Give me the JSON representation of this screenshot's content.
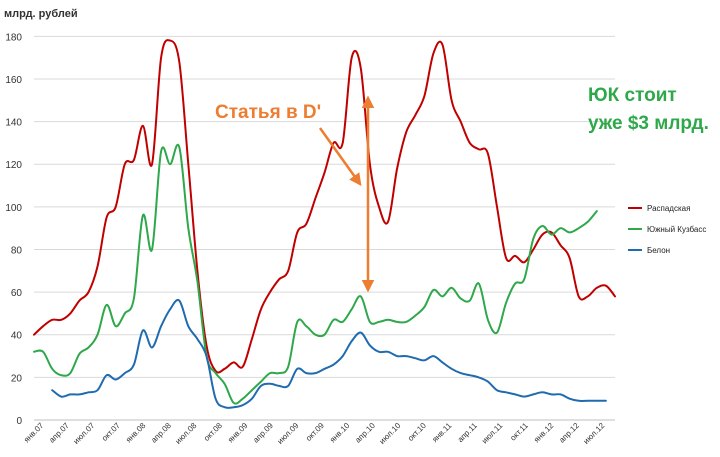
{
  "chart_data": {
    "type": "line",
    "ylabel": "млрд. рублей",
    "ylim": [
      0,
      190
    ],
    "yticks": [
      0,
      20,
      40,
      60,
      80,
      100,
      120,
      140,
      160,
      180
    ],
    "grid": "horizontal",
    "legend_position": "right",
    "x_tick_labels": [
      "янв.07",
      "апр.07",
      "июл.07",
      "окт.07",
      "янв.08",
      "апр.08",
      "июл.08",
      "окт.08",
      "янв.09",
      "апр.09",
      "июл.09",
      "окт.09",
      "янв.10",
      "апр.10",
      "июл.10",
      "окт.10",
      "янв.11",
      "апр.11",
      "июл.11",
      "окт.11",
      "янв.12",
      "апр.12",
      "июл.12"
    ],
    "series": [
      {
        "name": "Распадская",
        "color": "#C00000",
        "points": [
          [
            0,
            40
          ],
          [
            1,
            44
          ],
          [
            2,
            47
          ],
          [
            3,
            47
          ],
          [
            4,
            50
          ],
          [
            5,
            56
          ],
          [
            6,
            60
          ],
          [
            7,
            72
          ],
          [
            8,
            95
          ],
          [
            9,
            100
          ],
          [
            10,
            120
          ],
          [
            11,
            122
          ],
          [
            12,
            138
          ],
          [
            13,
            120
          ],
          [
            14,
            170
          ],
          [
            15,
            178
          ],
          [
            16,
            168
          ],
          [
            17,
            120
          ],
          [
            18,
            70
          ],
          [
            19,
            35
          ],
          [
            20,
            23
          ],
          [
            21,
            24
          ],
          [
            22,
            27
          ],
          [
            23,
            25
          ],
          [
            24,
            38
          ],
          [
            25,
            52
          ],
          [
            26,
            60
          ],
          [
            27,
            66
          ],
          [
            28,
            70
          ],
          [
            29,
            88
          ],
          [
            30,
            92
          ],
          [
            31,
            104
          ],
          [
            32,
            116
          ],
          [
            33,
            130
          ],
          [
            34,
            130
          ],
          [
            35,
            170
          ],
          [
            36,
            165
          ],
          [
            37,
            120
          ],
          [
            38,
            100
          ],
          [
            39,
            93
          ],
          [
            40,
            118
          ],
          [
            41,
            135
          ],
          [
            42,
            143
          ],
          [
            43,
            152
          ],
          [
            44,
            172
          ],
          [
            45,
            176
          ],
          [
            46,
            150
          ],
          [
            47,
            140
          ],
          [
            48,
            130
          ],
          [
            49,
            127
          ],
          [
            50,
            125
          ],
          [
            51,
            100
          ],
          [
            52,
            76
          ],
          [
            53,
            77
          ],
          [
            54,
            74
          ],
          [
            55,
            80
          ],
          [
            56,
            87
          ],
          [
            57,
            88
          ],
          [
            58,
            82
          ],
          [
            59,
            76
          ],
          [
            60,
            58
          ],
          [
            61,
            58
          ],
          [
            62,
            62
          ],
          [
            63,
            63
          ],
          [
            64,
            58
          ]
        ]
      },
      {
        "name": "Южный Кузбасс",
        "color": "#2EA84A",
        "points": [
          [
            0,
            32
          ],
          [
            1,
            32
          ],
          [
            2,
            24
          ],
          [
            3,
            21
          ],
          [
            4,
            22
          ],
          [
            5,
            31
          ],
          [
            6,
            34
          ],
          [
            7,
            40
          ],
          [
            8,
            54
          ],
          [
            9,
            44
          ],
          [
            10,
            50
          ],
          [
            11,
            57
          ],
          [
            12,
            96
          ],
          [
            13,
            80
          ],
          [
            14,
            126
          ],
          [
            15,
            120
          ],
          [
            16,
            128
          ],
          [
            17,
            90
          ],
          [
            18,
            65
          ],
          [
            19,
            30
          ],
          [
            20,
            22
          ],
          [
            21,
            17
          ],
          [
            22,
            8
          ],
          [
            23,
            10
          ],
          [
            24,
            14
          ],
          [
            25,
            18
          ],
          [
            26,
            22
          ],
          [
            27,
            22
          ],
          [
            28,
            25
          ],
          [
            29,
            46
          ],
          [
            30,
            44
          ],
          [
            31,
            40
          ],
          [
            32,
            40
          ],
          [
            33,
            47
          ],
          [
            34,
            46
          ],
          [
            35,
            52
          ],
          [
            36,
            58
          ],
          [
            37,
            46
          ],
          [
            38,
            46
          ],
          [
            39,
            47
          ],
          [
            40,
            46
          ],
          [
            41,
            46
          ],
          [
            42,
            49
          ],
          [
            43,
            53
          ],
          [
            44,
            61
          ],
          [
            45,
            58
          ],
          [
            46,
            62
          ],
          [
            47,
            57
          ],
          [
            48,
            56
          ],
          [
            49,
            64
          ],
          [
            50,
            47
          ],
          [
            51,
            41
          ],
          [
            52,
            55
          ],
          [
            53,
            64
          ],
          [
            54,
            66
          ],
          [
            55,
            85
          ],
          [
            56,
            91
          ],
          [
            57,
            87
          ],
          [
            58,
            90
          ],
          [
            59,
            88
          ],
          [
            60,
            90
          ],
          [
            61,
            93
          ],
          [
            62,
            98
          ]
        ]
      },
      {
        "name": "Белон",
        "color": "#1F6BB0",
        "points": [
          [
            2,
            14
          ],
          [
            3,
            11
          ],
          [
            4,
            12
          ],
          [
            5,
            12
          ],
          [
            6,
            13
          ],
          [
            7,
            14
          ],
          [
            8,
            21
          ],
          [
            9,
            19
          ],
          [
            10,
            22
          ],
          [
            11,
            26
          ],
          [
            12,
            42
          ],
          [
            13,
            34
          ],
          [
            14,
            44
          ],
          [
            15,
            52
          ],
          [
            16,
            56
          ],
          [
            17,
            44
          ],
          [
            18,
            38
          ],
          [
            19,
            30
          ],
          [
            20,
            10
          ],
          [
            21,
            6
          ],
          [
            22,
            6
          ],
          [
            23,
            7
          ],
          [
            24,
            10
          ],
          [
            25,
            16
          ],
          [
            26,
            17
          ],
          [
            27,
            16
          ],
          [
            28,
            16
          ],
          [
            29,
            24
          ],
          [
            30,
            22
          ],
          [
            31,
            22
          ],
          [
            32,
            24
          ],
          [
            33,
            26
          ],
          [
            34,
            30
          ],
          [
            35,
            37
          ],
          [
            36,
            41
          ],
          [
            37,
            35
          ],
          [
            38,
            32
          ],
          [
            39,
            32
          ],
          [
            40,
            30
          ],
          [
            41,
            30
          ],
          [
            42,
            29
          ],
          [
            43,
            28
          ],
          [
            44,
            30
          ],
          [
            45,
            27
          ],
          [
            46,
            24
          ],
          [
            47,
            22
          ],
          [
            48,
            21
          ],
          [
            49,
            20
          ],
          [
            50,
            18
          ],
          [
            51,
            14
          ],
          [
            52,
            13
          ],
          [
            53,
            12
          ],
          [
            54,
            11
          ],
          [
            55,
            12
          ],
          [
            56,
            13
          ],
          [
            57,
            12
          ],
          [
            58,
            12
          ],
          [
            59,
            10
          ],
          [
            60,
            9
          ],
          [
            61,
            9
          ],
          [
            62,
            9
          ],
          [
            63,
            9
          ]
        ]
      }
    ],
    "annotations": [
      {
        "text": "Статья в D'",
        "color": "#ED7D31"
      },
      {
        "text": "ЮК стоит",
        "color": "#2EA84A"
      },
      {
        "text": "уже $3 млрд.",
        "color": "#2EA84A"
      }
    ]
  }
}
